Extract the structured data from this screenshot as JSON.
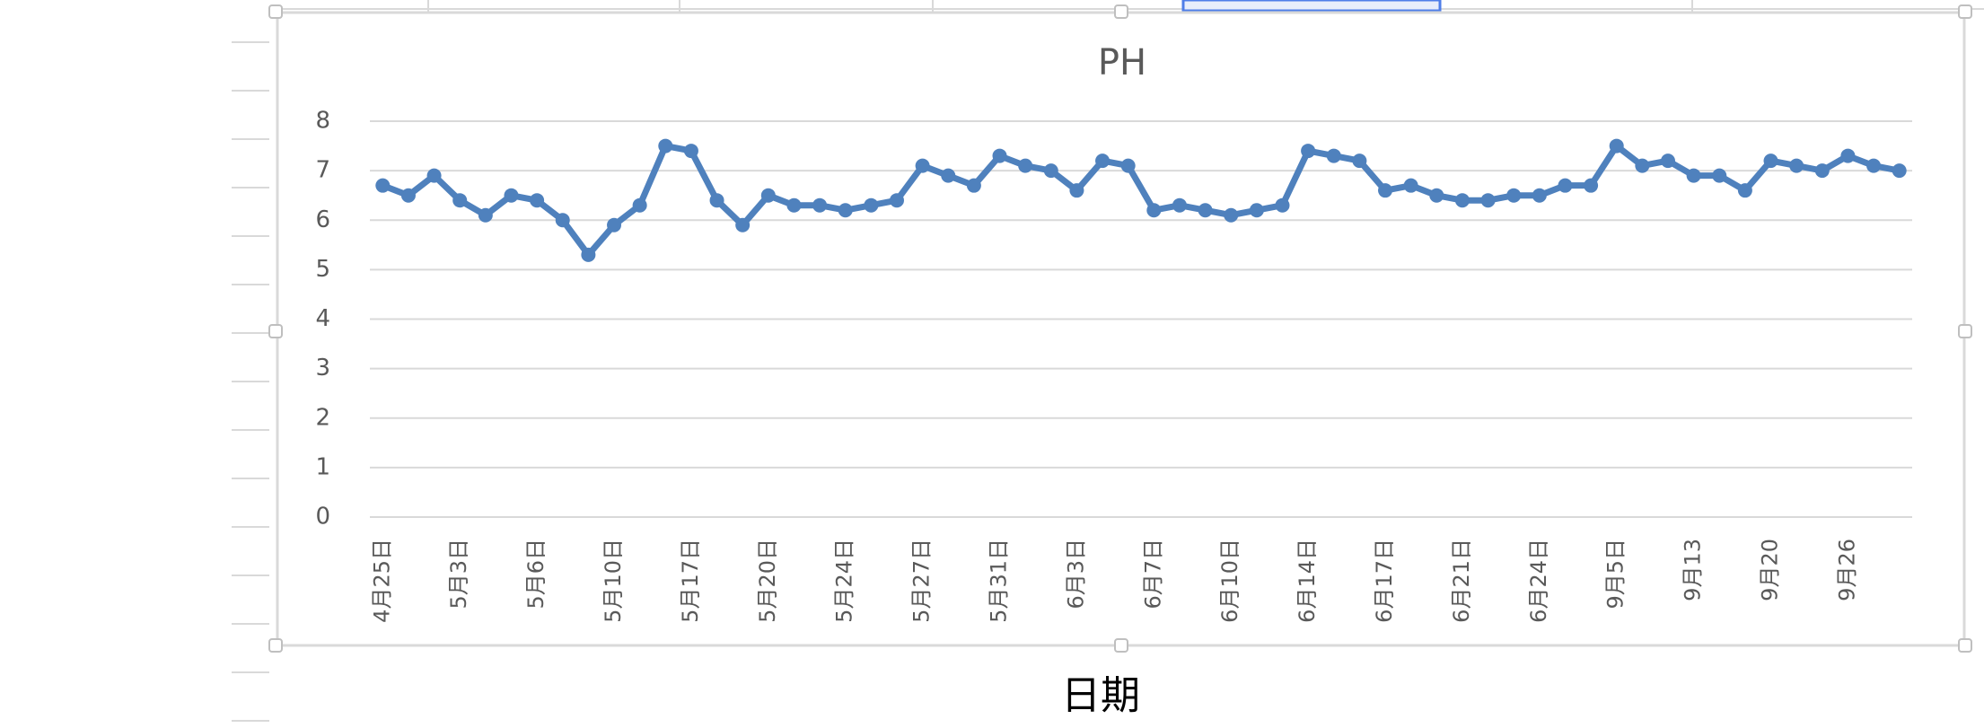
{
  "chart_data": {
    "type": "line",
    "title": "PH",
    "xlabel": "日期",
    "categories": [
      "4月25日",
      null,
      null,
      "5月3日",
      null,
      null,
      "5月6日",
      null,
      null,
      "5月10日",
      null,
      null,
      "5月17日",
      null,
      null,
      "5月20日",
      null,
      null,
      "5月24日",
      null,
      null,
      "5月27日",
      null,
      null,
      "5月31日",
      null,
      null,
      "6月3日",
      null,
      null,
      "6月7日",
      null,
      null,
      "6月10日",
      null,
      null,
      "6月14日",
      null,
      null,
      "6月17日",
      null,
      null,
      "6月21日",
      null,
      null,
      "6月24日",
      null,
      null,
      "9月5日",
      null,
      null,
      "9月13",
      null,
      null,
      "9月20",
      null,
      null,
      "9月26",
      null,
      null
    ],
    "series": [
      {
        "name": "PH",
        "color": "#4f81bd",
        "values": [
          6.7,
          6.5,
          6.9,
          6.4,
          6.1,
          6.5,
          6.4,
          6.0,
          5.3,
          5.9,
          6.3,
          7.5,
          7.4,
          6.4,
          5.9,
          6.5,
          6.3,
          6.3,
          6.2,
          6.3,
          6.4,
          7.1,
          6.9,
          6.7,
          7.3,
          7.1,
          7.0,
          6.6,
          7.2,
          7.1,
          6.2,
          6.3,
          6.2,
          6.1,
          6.2,
          6.3,
          7.4,
          7.3,
          7.2,
          6.6,
          6.7,
          6.5,
          6.4,
          6.4,
          6.5,
          6.5,
          6.7,
          6.7,
          7.5,
          7.1,
          7.2,
          6.9,
          6.9,
          6.6,
          7.2,
          7.1,
          7.0,
          7.3,
          7.1,
          7.0
        ]
      }
    ],
    "ylim": [
      0,
      8
    ],
    "yticks": [
      0,
      1,
      2,
      3,
      4,
      5,
      6,
      7,
      8
    ],
    "grid": true,
    "legend": false
  }
}
